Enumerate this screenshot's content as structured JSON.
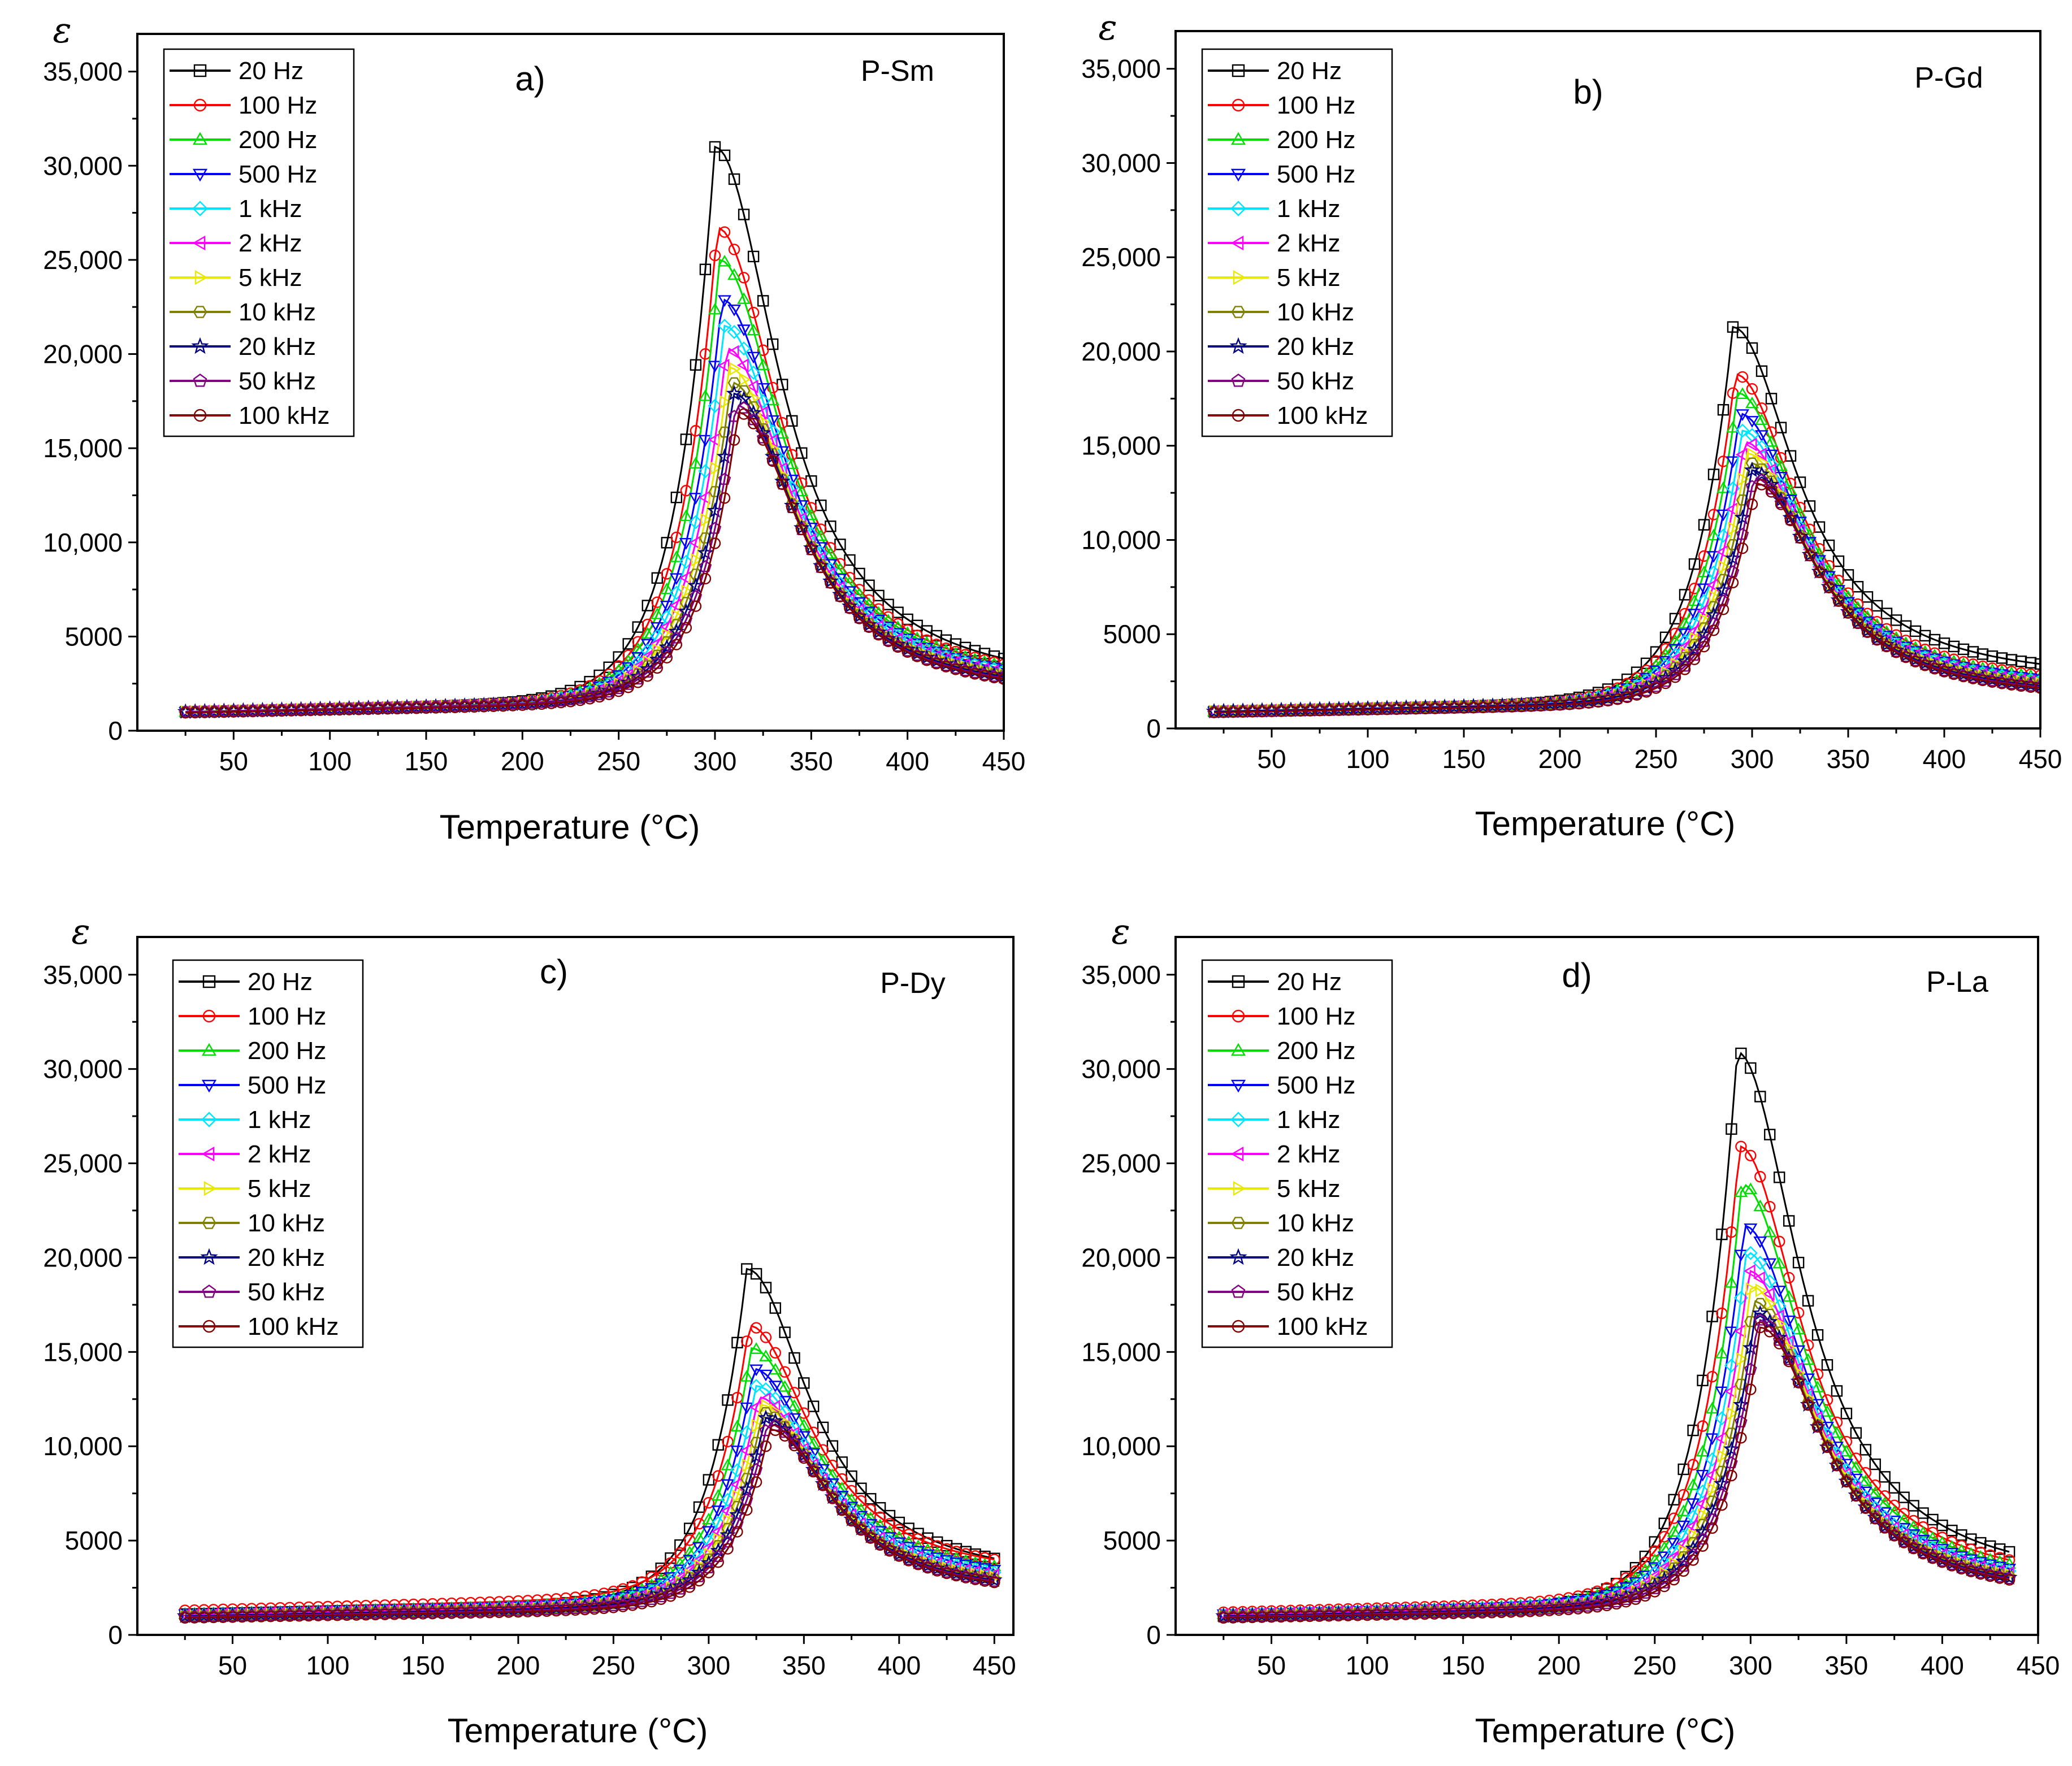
{
  "figure": {
    "colors": {
      "20 Hz": "#000000",
      "100 Hz": "#ff0000",
      "200 Hz": "#00dd00",
      "500 Hz": "#0000ff",
      "1 kHz": "#00e5ff",
      "2 kHz": "#ff00ff",
      "5 kHz": "#e8e800",
      "10 kHz": "#808000",
      "20 kHz": "#000080",
      "50 kHz": "#800080",
      "100 kHz": "#800000"
    }
  },
  "chart_data": [
    {
      "type": "line",
      "panel": "a)",
      "sample": "P-Sm",
      "title": "",
      "xlabel": "Temperature (°C)",
      "ylabel": "ε",
      "xlim": [
        0,
        450
      ],
      "ylim": [
        0,
        37000
      ],
      "xticks": [
        50,
        100,
        150,
        200,
        250,
        300,
        350,
        400,
        450
      ],
      "yticks": [
        0,
        5000,
        10000,
        15000,
        20000,
        25000,
        30000,
        35000
      ],
      "ytick_labels": [
        "0",
        "5000",
        "10,000",
        "15,000",
        "20,000",
        "25,000",
        "30,000",
        "35,000"
      ],
      "legend_position": "top-left",
      "grid": false,
      "x_range": [
        25,
        450
      ],
      "peak_temperature_c": 300,
      "series": [
        {
          "name": "20 Hz",
          "marker": "square",
          "peak": 31000,
          "base": 1000,
          "end": 1900
        },
        {
          "name": "100 Hz",
          "marker": "circle",
          "peak": 26700,
          "base": 1000,
          "end": 1850
        },
        {
          "name": "200 Hz",
          "marker": "triangle-up",
          "peak": 25000,
          "base": 1000,
          "end": 1850
        },
        {
          "name": "500 Hz",
          "marker": "triangle-down",
          "peak": 22900,
          "base": 1000,
          "end": 1800
        },
        {
          "name": "1 kHz",
          "marker": "diamond",
          "peak": 21500,
          "base": 1000,
          "end": 1800
        },
        {
          "name": "2 kHz",
          "marker": "triangle-left",
          "peak": 20300,
          "base": 1000,
          "end": 1750
        },
        {
          "name": "5 kHz",
          "marker": "triangle-right",
          "peak": 19300,
          "base": 1000,
          "end": 1700
        },
        {
          "name": "10 kHz",
          "marker": "hexagon",
          "peak": 18500,
          "base": 1000,
          "end": 1700
        },
        {
          "name": "20 kHz",
          "marker": "star",
          "peak": 17900,
          "base": 1000,
          "end": 1650
        },
        {
          "name": "50 kHz",
          "marker": "pentagon",
          "peak": 17300,
          "base": 1000,
          "end": 1600
        },
        {
          "name": "100 kHz",
          "marker": "circle",
          "peak": 16900,
          "base": 950,
          "end": 1550
        }
      ]
    },
    {
      "type": "line",
      "panel": "b)",
      "sample": "P-Gd",
      "title": "",
      "xlabel": "Temperature (°C)",
      "ylabel": "ε",
      "xlim": [
        0,
        450
      ],
      "ylim": [
        0,
        37000
      ],
      "xticks": [
        50,
        100,
        150,
        200,
        250,
        300,
        350,
        400,
        450
      ],
      "yticks": [
        0,
        5000,
        10000,
        15000,
        20000,
        25000,
        30000,
        35000
      ],
      "ytick_labels": [
        "0",
        "5000",
        "10,000",
        "15,000",
        "20,000",
        "25,000",
        "30,000",
        "35,000"
      ],
      "legend_position": "top-left",
      "grid": false,
      "x_range": [
        20,
        450
      ],
      "peak_temperature_c": 290,
      "series": [
        {
          "name": "20 Hz",
          "marker": "square",
          "peak": 21300,
          "base": 900,
          "end": 2300
        },
        {
          "name": "100 Hz",
          "marker": "circle",
          "peak": 18800,
          "base": 900,
          "end": 1800
        },
        {
          "name": "200 Hz",
          "marker": "triangle-up",
          "peak": 17800,
          "base": 900,
          "end": 1750
        },
        {
          "name": "500 Hz",
          "marker": "triangle-down",
          "peak": 16700,
          "base": 900,
          "end": 1700
        },
        {
          "name": "1 kHz",
          "marker": "diamond",
          "peak": 15800,
          "base": 900,
          "end": 1650
        },
        {
          "name": "2 kHz",
          "marker": "triangle-left",
          "peak": 15200,
          "base": 900,
          "end": 1600
        },
        {
          "name": "5 kHz",
          "marker": "triangle-right",
          "peak": 14600,
          "base": 900,
          "end": 1550
        },
        {
          "name": "10 kHz",
          "marker": "hexagon",
          "peak": 14100,
          "base": 900,
          "end": 1500
        },
        {
          "name": "20 kHz",
          "marker": "star",
          "peak": 13700,
          "base": 900,
          "end": 1450
        },
        {
          "name": "50 kHz",
          "marker": "pentagon",
          "peak": 13300,
          "base": 850,
          "end": 1400
        },
        {
          "name": "100 kHz",
          "marker": "circle",
          "peak": 13000,
          "base": 850,
          "end": 1350
        }
      ]
    },
    {
      "type": "line",
      "panel": "c)",
      "sample": "P-Dy",
      "title": "",
      "xlabel": "Temperature (°C)",
      "ylabel": "ε",
      "xlim": [
        0,
        460
      ],
      "ylim": [
        0,
        37000
      ],
      "xticks": [
        50,
        100,
        150,
        200,
        250,
        300,
        350,
        400,
        450
      ],
      "yticks": [
        0,
        5000,
        10000,
        15000,
        20000,
        25000,
        30000,
        35000
      ],
      "ytick_labels": [
        "0",
        "5000",
        "10,000",
        "15,000",
        "20,000",
        "25,000",
        "30,000",
        "35,000"
      ],
      "legend_position": "top-left",
      "grid": false,
      "x_range": [
        25,
        450
      ],
      "peak_temperature_c": 320,
      "series": [
        {
          "name": "20 Hz",
          "marker": "square",
          "peak": 19400,
          "base": 1100,
          "end": 2600
        },
        {
          "name": "100 Hz",
          "marker": "circle",
          "peak": 16400,
          "base": 1300,
          "end": 2800
        },
        {
          "name": "200 Hz",
          "marker": "triangle-up",
          "peak": 15200,
          "base": 1100,
          "end": 2500
        },
        {
          "name": "500 Hz",
          "marker": "triangle-down",
          "peak": 14100,
          "base": 1100,
          "end": 2400
        },
        {
          "name": "1 kHz",
          "marker": "diamond",
          "peak": 13200,
          "base": 1050,
          "end": 2300
        },
        {
          "name": "2 kHz",
          "marker": "triangle-left",
          "peak": 12600,
          "base": 1050,
          "end": 2200
        },
        {
          "name": "5 kHz",
          "marker": "triangle-right",
          "peak": 12200,
          "base": 1000,
          "end": 2100
        },
        {
          "name": "10 kHz",
          "marker": "hexagon",
          "peak": 11800,
          "base": 1000,
          "end": 2000
        },
        {
          "name": "20 kHz",
          "marker": "star",
          "peak": 11500,
          "base": 1000,
          "end": 1950
        },
        {
          "name": "50 kHz",
          "marker": "pentagon",
          "peak": 11200,
          "base": 950,
          "end": 1900
        },
        {
          "name": "100 kHz",
          "marker": "circle",
          "peak": 10900,
          "base": 900,
          "end": 1850
        }
      ]
    },
    {
      "type": "line",
      "panel": "d)",
      "sample": "P-La",
      "title": "",
      "xlabel": "Temperature (°C)",
      "ylabel": "ε",
      "xlim": [
        0,
        450
      ],
      "ylim": [
        0,
        37000
      ],
      "xticks": [
        50,
        100,
        150,
        200,
        250,
        300,
        350,
        400,
        450
      ],
      "yticks": [
        0,
        5000,
        10000,
        15000,
        20000,
        25000,
        30000,
        35000
      ],
      "ytick_labels": [
        "0",
        "5000",
        "10,000",
        "15,000",
        "20,000",
        "25,000",
        "30,000",
        "35,000"
      ],
      "legend_position": "top-left",
      "grid": false,
      "x_range": [
        25,
        435
      ],
      "peak_temperature_c": 293,
      "series": [
        {
          "name": "20 Hz",
          "marker": "square",
          "peak": 30900,
          "base": 1000,
          "end": 2300
        },
        {
          "name": "100 Hz",
          "marker": "circle",
          "peak": 25900,
          "base": 1200,
          "end": 2200
        },
        {
          "name": "200 Hz",
          "marker": "triangle-up",
          "peak": 23900,
          "base": 1100,
          "end": 2100
        },
        {
          "name": "500 Hz",
          "marker": "triangle-down",
          "peak": 21700,
          "base": 1100,
          "end": 2000
        },
        {
          "name": "1 kHz",
          "marker": "diamond",
          "peak": 20300,
          "base": 1050,
          "end": 1950
        },
        {
          "name": "2 kHz",
          "marker": "triangle-left",
          "peak": 19300,
          "base": 1050,
          "end": 1900
        },
        {
          "name": "5 kHz",
          "marker": "triangle-right",
          "peak": 18500,
          "base": 1000,
          "end": 1850
        },
        {
          "name": "10 kHz",
          "marker": "hexagon",
          "peak": 17700,
          "base": 1000,
          "end": 1800
        },
        {
          "name": "20 kHz",
          "marker": "star",
          "peak": 17100,
          "base": 1000,
          "end": 1750
        },
        {
          "name": "50 kHz",
          "marker": "pentagon",
          "peak": 16700,
          "base": 950,
          "end": 1700
        },
        {
          "name": "100 kHz",
          "marker": "circle",
          "peak": 16300,
          "base": 900,
          "end": 1650
        }
      ]
    }
  ]
}
